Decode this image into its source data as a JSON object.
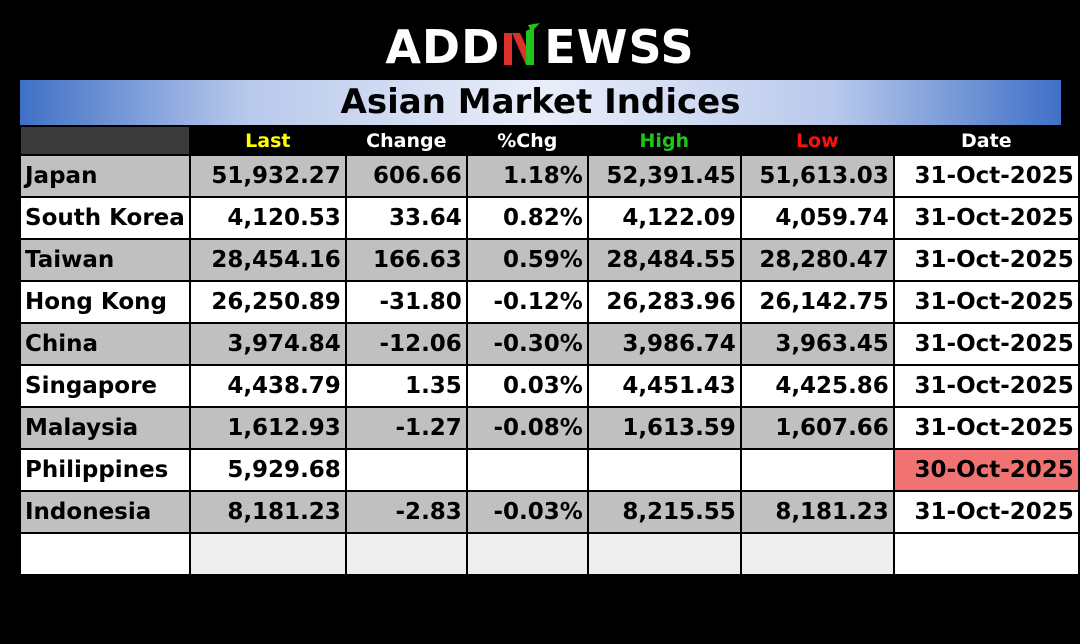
{
  "brand": {
    "logo_left": "ADD",
    "logo_right": "EWSS",
    "logo_mark": "N",
    "accent_green": "#22c21e",
    "accent_red": "#e0302a"
  },
  "title": "Asian Market Indices",
  "header": {
    "last": "Last",
    "change": "Change",
    "pct_chg": "%Chg",
    "high": "High",
    "low": "Low",
    "date": "Date",
    "colors": {
      "last": "#ffff00",
      "high": "#22c21e",
      "low": "#ff1010",
      "default": "#ffffff"
    }
  },
  "rows": [
    {
      "country": "Japan",
      "last": "51,932.27",
      "change": "606.66",
      "pct": "1.18%",
      "high": "52,391.45",
      "low": "51,613.03",
      "date": "31-Oct-2025",
      "dir": "pos"
    },
    {
      "country": "South Korea",
      "last": "4,120.53",
      "change": "33.64",
      "pct": "0.82%",
      "high": "4,122.09",
      "low": "4,059.74",
      "date": "31-Oct-2025",
      "dir": "pos"
    },
    {
      "country": "Taiwan",
      "last": "28,454.16",
      "change": "166.63",
      "pct": "0.59%",
      "high": "28,484.55",
      "low": "28,280.47",
      "date": "31-Oct-2025",
      "dir": "pos"
    },
    {
      "country": "Hong Kong",
      "last": "26,250.89",
      "change": "-31.80",
      "pct": "-0.12%",
      "high": "26,283.96",
      "low": "26,142.75",
      "date": "31-Oct-2025",
      "dir": "neg"
    },
    {
      "country": "China",
      "last": "3,974.84",
      "change": "-12.06",
      "pct": "-0.30%",
      "high": "3,986.74",
      "low": "3,963.45",
      "date": "31-Oct-2025",
      "dir": "neg"
    },
    {
      "country": "Singapore",
      "last": "4,438.79",
      "change": "1.35",
      "pct": "0.03%",
      "high": "4,451.43",
      "low": "4,425.86",
      "date": "31-Oct-2025",
      "dir": "pos"
    },
    {
      "country": "Malaysia",
      "last": "1,612.93",
      "change": "-1.27",
      "pct": "-0.08%",
      "high": "1,613.59",
      "low": "1,607.66",
      "date": "31-Oct-2025",
      "dir": "neg"
    },
    {
      "country": "Philippines",
      "last": "5,929.68",
      "change": "",
      "pct": "",
      "high": "",
      "low": "",
      "date": "30-Oct-2025",
      "dir": "none",
      "stale": true
    },
    {
      "country": "Indonesia",
      "last": "8,181.23",
      "change": "-2.83",
      "pct": "-0.03%",
      "high": "8,215.55",
      "low": "8,181.23",
      "date": "31-Oct-2025",
      "dir": "neg"
    }
  ],
  "colors": {
    "positive": "#0a7d0a",
    "negative": "#ff1010",
    "row_shaded": "#c0c0c0",
    "stale_date": "#f07272",
    "title_gradient_edge": "#3f70c6"
  }
}
